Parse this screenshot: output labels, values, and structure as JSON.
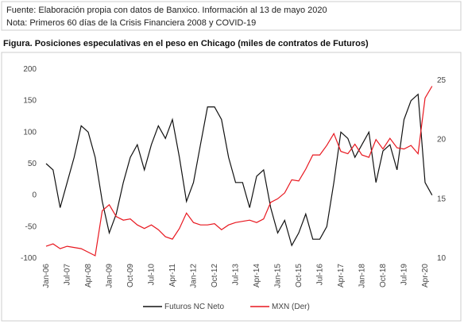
{
  "chart_data": {
    "type": "line",
    "source": "Fuente: Elaboración propia con datos de Banxico. Información al 13 de mayo 2020",
    "note": "Nota: Primeros 60 días de la Crisis Financiera 2008 y COVID-19",
    "title": "Figura. Posiciones especulativas en el peso en Chicago (miles de contratos de Futuros)",
    "categories": [
      "Jan-06",
      null,
      null,
      "Jul-07",
      null,
      null,
      "Apr-08",
      null,
      null,
      "Jan-09",
      null,
      null,
      "Oct-09",
      null,
      null,
      "Jul-10",
      null,
      null,
      "Apr-11",
      null,
      null,
      "Jan-12",
      null,
      null,
      "Oct-12",
      null,
      null,
      "Jul-13",
      null,
      null,
      "Apr-14",
      null,
      null,
      "Jan-15",
      null,
      null,
      "Oct-15",
      null,
      null,
      "Jul-16",
      null,
      null,
      "Apr-17",
      null,
      null,
      "Jan-18",
      null,
      null,
      "Oct-18",
      null,
      null,
      "Jul-19",
      null,
      null,
      "Apr-20",
      null
    ],
    "series": [
      {
        "name": "Futuros NC Neto",
        "color": "#111111",
        "values": [
          50,
          40,
          -20,
          20,
          60,
          110,
          100,
          60,
          -10,
          -60,
          -30,
          20,
          60,
          80,
          40,
          80,
          110,
          90,
          120,
          60,
          -10,
          20,
          80,
          140,
          140,
          120,
          60,
          20,
          20,
          -20,
          30,
          40,
          -20,
          -60,
          -40,
          -80,
          -60,
          -30,
          -70,
          -70,
          -50,
          20,
          100,
          90,
          60,
          80,
          100,
          20,
          70,
          80,
          40,
          120,
          150,
          160,
          20,
          0
        ]
      },
      {
        "name": "MXN (Der)",
        "color": "#e8171f",
        "axis": "y2",
        "values": [
          11,
          11.2,
          10.8,
          11,
          10.9,
          10.8,
          10.5,
          10.2,
          14,
          14.5,
          13.5,
          13.2,
          13.3,
          12.8,
          12.5,
          12.8,
          12.4,
          11.8,
          11.6,
          12.5,
          13.8,
          13,
          12.8,
          12.8,
          12.9,
          12.4,
          12.8,
          13,
          13.1,
          13.2,
          13,
          13.3,
          14.7,
          15,
          15.5,
          16.6,
          16.5,
          17.5,
          18.7,
          18.7,
          19.5,
          20.5,
          19,
          18.8,
          19.6,
          18.7,
          18.5,
          20,
          19.2,
          20.1,
          19.3,
          19.2,
          19.5,
          18.8,
          23.5,
          24.5
        ]
      }
    ],
    "ylim": [
      -100,
      200
    ],
    "yticks": [
      -100,
      -50,
      0,
      50,
      100,
      150,
      200
    ],
    "y2lim": [
      10,
      25
    ],
    "y2ticks": [
      10,
      15,
      20,
      25
    ],
    "legend": "bottom"
  }
}
